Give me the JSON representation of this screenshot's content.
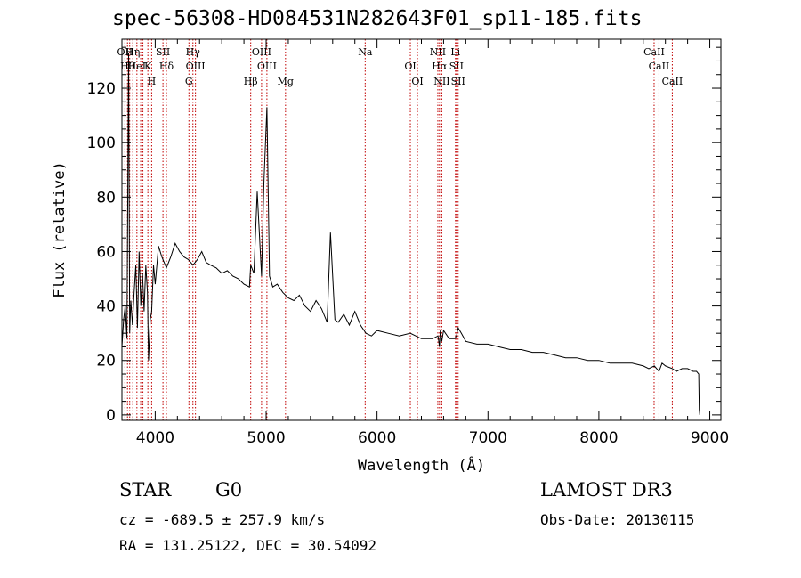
{
  "header": {
    "title": "spec-56308-HD084531N282643F01_sp11-185.fits"
  },
  "footer": {
    "class_label": "STAR",
    "subclass_label": "G0",
    "survey": "LAMOST DR3",
    "cz": "cz = -689.5 ± 257.9 km/s",
    "obs_date": "Obs-Date: 20130115",
    "coords": "RA = 131.25122, DEC =  30.54092"
  },
  "colors": {
    "line_marker": "#c00000",
    "spectrum": "#000000",
    "axes": "#000000"
  },
  "chart_data": {
    "type": "line",
    "title": "spec-56308-HD084531N282643F01_sp11-185.fits",
    "xlabel": "Wavelength (Å)",
    "ylabel": "Flux (relative)",
    "xlim": [
      3700,
      9100
    ],
    "ylim": [
      -2,
      138
    ],
    "xticks": [
      4000,
      5000,
      6000,
      7000,
      8000,
      9000
    ],
    "xtick_labels": [
      "4000",
      "5000",
      "6000",
      "7000",
      "8000",
      "9000"
    ],
    "yticks": [
      0,
      20,
      40,
      60,
      80,
      100,
      120
    ],
    "ytick_labels": [
      "0",
      "20",
      "40",
      "60",
      "80",
      "100",
      "120"
    ],
    "series": [
      {
        "name": "spectrum",
        "x": [
          3700,
          3715,
          3730,
          3745,
          3760,
          3770,
          3780,
          3795,
          3810,
          3825,
          3840,
          3855,
          3870,
          3885,
          3900,
          3915,
          3930,
          3940,
          3955,
          3968,
          3985,
          4000,
          4030,
          4060,
          4101,
          4140,
          4180,
          4220,
          4260,
          4300,
          4340,
          4380,
          4420,
          4460,
          4500,
          4550,
          4600,
          4650,
          4700,
          4750,
          4800,
          4850,
          4861,
          4890,
          4920,
          4959,
          4980,
          5007,
          5030,
          5060,
          5100,
          5150,
          5200,
          5250,
          5300,
          5350,
          5400,
          5450,
          5500,
          5550,
          5580,
          5620,
          5650,
          5700,
          5750,
          5800,
          5850,
          5900,
          5950,
          6000,
          6100,
          6200,
          6300,
          6400,
          6500,
          6550,
          6563,
          6570,
          6584,
          6600,
          6650,
          6700,
          6716,
          6731,
          6760,
          6800,
          6900,
          7000,
          7100,
          7200,
          7300,
          7400,
          7500,
          7600,
          7700,
          7800,
          7900,
          8000,
          8100,
          8200,
          8300,
          8400,
          8450,
          8500,
          8542,
          8570,
          8600,
          8662,
          8700,
          8750,
          8800,
          8850,
          8880,
          8900,
          8905,
          8910
        ],
        "values": [
          25,
          35,
          40,
          28,
          133,
          30,
          42,
          33,
          45,
          55,
          32,
          60,
          40,
          52,
          38,
          55,
          45,
          20,
          35,
          38,
          55,
          48,
          62,
          58,
          54,
          58,
          63,
          60,
          58,
          57,
          55,
          57,
          60,
          56,
          55,
          54,
          52,
          53,
          51,
          50,
          48,
          47,
          55,
          52,
          82,
          51,
          85,
          113,
          51,
          47,
          48,
          45,
          43,
          42,
          44,
          40,
          38,
          42,
          39,
          34,
          67,
          35,
          34,
          37,
          33,
          38,
          33,
          30,
          29,
          31,
          30,
          29,
          30,
          28,
          28,
          29,
          25,
          31,
          27,
          31,
          28,
          28,
          29,
          32,
          30,
          27,
          26,
          26,
          25,
          24,
          24,
          23,
          23,
          22,
          21,
          21,
          20,
          20,
          19,
          19,
          19,
          18,
          17,
          18,
          16,
          19,
          18,
          17,
          16,
          17,
          17,
          16,
          16,
          15,
          2,
          0
        ]
      }
    ],
    "line_markers": [
      {
        "wavelength": 3727,
        "labels": [
          "OII"
        ]
      },
      {
        "wavelength": 3750,
        "labels": [
          "Hθ"
        ]
      },
      {
        "wavelength": 3770,
        "labels": [
          ""
        ]
      },
      {
        "wavelength": 3798,
        "labels": [
          "Hη"
        ]
      },
      {
        "wavelength": 3835,
        "labels": [
          "HeI"
        ]
      },
      {
        "wavelength": 3869,
        "labels": [
          ""
        ]
      },
      {
        "wavelength": 3889,
        "labels": [
          ""
        ]
      },
      {
        "wavelength": 3934,
        "labels": [
          "K"
        ]
      },
      {
        "wavelength": 3968,
        "labels": [
          "H"
        ]
      },
      {
        "wavelength": 4070,
        "labels": [
          "SII"
        ]
      },
      {
        "wavelength": 4101,
        "labels": [
          "Hδ"
        ]
      },
      {
        "wavelength": 4304,
        "labels": [
          "G"
        ]
      },
      {
        "wavelength": 4340,
        "labels": [
          "Hγ"
        ]
      },
      {
        "wavelength": 4363,
        "labels": [
          "OIII"
        ]
      },
      {
        "wavelength": 4861,
        "labels": [
          "Hβ"
        ]
      },
      {
        "wavelength": 4959,
        "labels": [
          "OIII"
        ]
      },
      {
        "wavelength": 5007,
        "labels": [
          "OIII"
        ]
      },
      {
        "wavelength": 5175,
        "labels": [
          "Mg"
        ]
      },
      {
        "wavelength": 5893,
        "labels": [
          "Na"
        ]
      },
      {
        "wavelength": 6300,
        "labels": [
          "OI"
        ]
      },
      {
        "wavelength": 6364,
        "labels": [
          "OI"
        ]
      },
      {
        "wavelength": 6548,
        "labels": [
          "NII"
        ]
      },
      {
        "wavelength": 6563,
        "labels": [
          "Hα"
        ]
      },
      {
        "wavelength": 6584,
        "labels": [
          "NII"
        ]
      },
      {
        "wavelength": 6707,
        "labels": [
          "Li"
        ]
      },
      {
        "wavelength": 6716,
        "labels": [
          "SII"
        ]
      },
      {
        "wavelength": 6731,
        "labels": [
          "SII"
        ]
      },
      {
        "wavelength": 8498,
        "labels": [
          "CaII"
        ]
      },
      {
        "wavelength": 8542,
        "labels": [
          "CaII"
        ]
      },
      {
        "wavelength": 8662,
        "labels": [
          "CaII"
        ]
      }
    ]
  }
}
